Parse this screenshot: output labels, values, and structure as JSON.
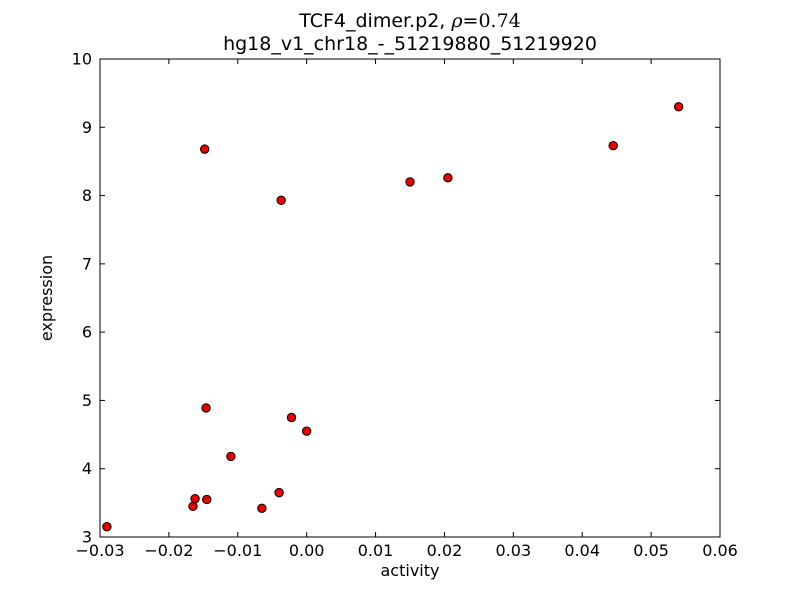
{
  "chart_data": {
    "type": "scatter",
    "title": {
      "prefix": "TCF4_dimer.p2, ",
      "rho": "ρ",
      "rho_value": "=0.74",
      "line2": "hg18_v1_chr18_-_51219880_51219920"
    },
    "xlabel": "activity",
    "ylabel": "expression",
    "xlim": [
      -0.03,
      0.06
    ],
    "ylim": [
      3,
      10
    ],
    "grid": false,
    "legend": null,
    "xtick_values": [
      -0.03,
      -0.02,
      -0.01,
      0,
      0.01,
      0.02,
      0.03,
      0.04,
      0.05,
      0.06
    ],
    "xtick_labels": [
      "−0.03",
      "−0.02",
      "−0.01",
      "0.00",
      "0.01",
      "0.02",
      "0.03",
      "0.04",
      "0.05",
      "0.06"
    ],
    "ytick_values": [
      3,
      4,
      5,
      6,
      7,
      8,
      9,
      10
    ],
    "ytick_labels": [
      "3",
      "4",
      "5",
      "6",
      "7",
      "8",
      "9",
      "10"
    ],
    "marker": {
      "shape": "circle",
      "fill": "#e60000",
      "edge": "#000000",
      "radius_px": 4.2
    },
    "points": [
      {
        "x": -0.029,
        "y": 3.15
      },
      {
        "x": -0.0165,
        "y": 3.45
      },
      {
        "x": -0.0162,
        "y": 3.56
      },
      {
        "x": -0.0145,
        "y": 3.55
      },
      {
        "x": -0.0146,
        "y": 4.89
      },
      {
        "x": -0.0148,
        "y": 8.68
      },
      {
        "x": -0.011,
        "y": 4.18
      },
      {
        "x": -0.0065,
        "y": 3.42
      },
      {
        "x": -0.004,
        "y": 3.65
      },
      {
        "x": -0.0037,
        "y": 7.93
      },
      {
        "x": -0.0022,
        "y": 4.75
      },
      {
        "x": 0.0,
        "y": 4.55
      },
      {
        "x": 0.015,
        "y": 8.2
      },
      {
        "x": 0.0205,
        "y": 8.26
      },
      {
        "x": 0.0445,
        "y": 8.73
      },
      {
        "x": 0.054,
        "y": 9.3
      }
    ]
  }
}
